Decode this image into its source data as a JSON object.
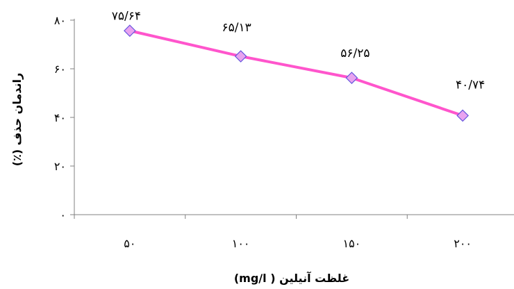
{
  "chart_data": {
    "type": "line",
    "categories": [
      "۵۰",
      "۱۰۰",
      "۱۵۰",
      "۲۰۰"
    ],
    "x": [
      50,
      100,
      150,
      200
    ],
    "series": [
      {
        "values": [
          75.64,
          65.13,
          56.25,
          40.74
        ],
        "labels": [
          "۷۵/۶۴",
          "۶۵/۱۳",
          "۵۶/۲۵",
          "۴۰/۷۴"
        ],
        "color": "#ff55cc",
        "marker_color": "#e9a3f0",
        "marker_edge": "#6655dd",
        "marker": "diamond"
      }
    ],
    "yticks": [
      0,
      20,
      40,
      60,
      80
    ],
    "yticklabels": [
      "۰",
      "۲۰",
      "۴۰",
      "۶۰",
      "۸۰"
    ],
    "ylim": [
      0,
      80
    ],
    "xlabel": "غلظت آنیلین ( mg/l)",
    "ylabel": "راندمان حذف (٪)",
    "grid": false,
    "legend": "none"
  }
}
